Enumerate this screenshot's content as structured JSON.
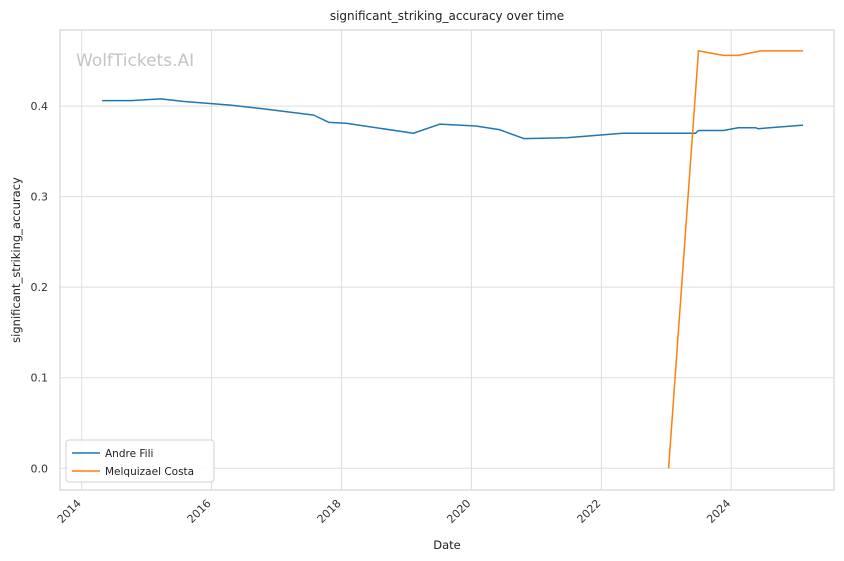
{
  "chart_data": {
    "type": "line",
    "title": "significant_striking_accuracy over time",
    "xlabel": "Date",
    "ylabel": "significant_striking_accuracy",
    "watermark": "WolfTickets.AI",
    "xlim": [
      "2013-09-01",
      "2025-08-01"
    ],
    "ylim": [
      -0.024,
      0.484
    ],
    "x_ticks": [
      "2014",
      "2016",
      "2018",
      "2020",
      "2022",
      "2024"
    ],
    "y_ticks": [
      "0.0",
      "0.1",
      "0.2",
      "0.3",
      "0.4"
    ],
    "grid": true,
    "legend_position": "lower-left",
    "series": [
      {
        "name": "Andre Fili",
        "color": "#1f77b4",
        "points": [
          [
            "2014-04-26",
            0.406
          ],
          [
            "2014-10-04",
            0.406
          ],
          [
            "2015-03-21",
            0.408
          ],
          [
            "2015-08-01",
            0.405
          ],
          [
            "2016-04-16",
            0.401
          ],
          [
            "2016-10-15",
            0.397
          ],
          [
            "2017-07-29",
            0.39
          ],
          [
            "2017-10-21",
            0.382
          ],
          [
            "2018-01-27",
            0.381
          ],
          [
            "2019-02-09",
            0.37
          ],
          [
            "2019-07-07",
            0.38
          ],
          [
            "2020-01-25",
            0.378
          ],
          [
            "2020-06-06",
            0.374
          ],
          [
            "2020-10-24",
            0.364
          ],
          [
            "2021-06-19",
            0.365
          ],
          [
            "2022-04-30",
            0.37
          ],
          [
            "2023-06-15",
            0.37
          ],
          [
            "2023-07-01",
            0.373
          ],
          [
            "2023-11-18",
            0.373
          ],
          [
            "2024-02-10",
            0.376
          ],
          [
            "2024-05-18",
            0.376
          ],
          [
            "2024-06-01",
            0.375
          ],
          [
            "2025-02-08",
            0.379
          ]
        ]
      },
      {
        "name": "Melquizael Costa",
        "color": "#ff7f0e",
        "points": [
          [
            "2023-01-14",
            0.0
          ],
          [
            "2023-07-01",
            0.461
          ],
          [
            "2023-11-18",
            0.456
          ],
          [
            "2024-02-10",
            0.456
          ],
          [
            "2024-06-15",
            0.461
          ],
          [
            "2025-02-08",
            0.461
          ]
        ]
      }
    ]
  }
}
